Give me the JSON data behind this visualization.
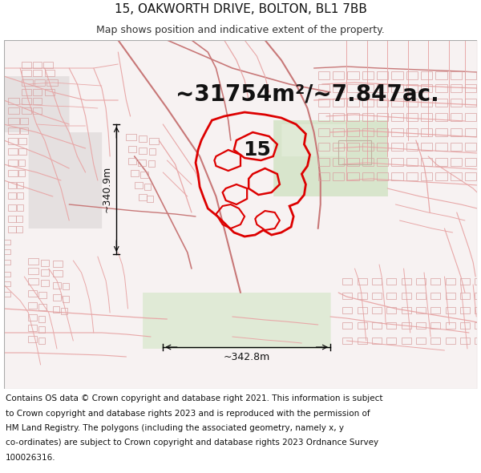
{
  "title_line1": "15, OAKWORTH DRIVE, BOLTON, BL1 7BB",
  "title_line2": "Map shows position and indicative extent of the property.",
  "area_text": "~31754m²/~7.847ac.",
  "label_15": "15",
  "dim_vertical": "~340.9m",
  "dim_horizontal": "~342.8m",
  "footer_text": "Contains OS data © Crown copyright and database right 2021. This information is subject to Crown copyright and database rights 2023 and is reproduced with the permission of HM Land Registry. The polygons (including the associated geometry, namely x, y co-ordinates) are subject to Crown copyright and database rights 2023 Ordnance Survey 100026316.",
  "bg_color": "#ffffff",
  "title_fontsize": 11,
  "subtitle_fontsize": 9,
  "area_fontsize": 20,
  "label_fontsize": 18,
  "dim_fontsize": 9,
  "footer_fontsize": 7.5,
  "map_color": "#f5eeee",
  "road_color": "#e8a8a8",
  "road_color2": "#c87878",
  "highlight_color": "#dd0000",
  "green_color": "#c8dcb8",
  "school_color": "#e8d8c0",
  "gray_color": "#d8d0d0"
}
